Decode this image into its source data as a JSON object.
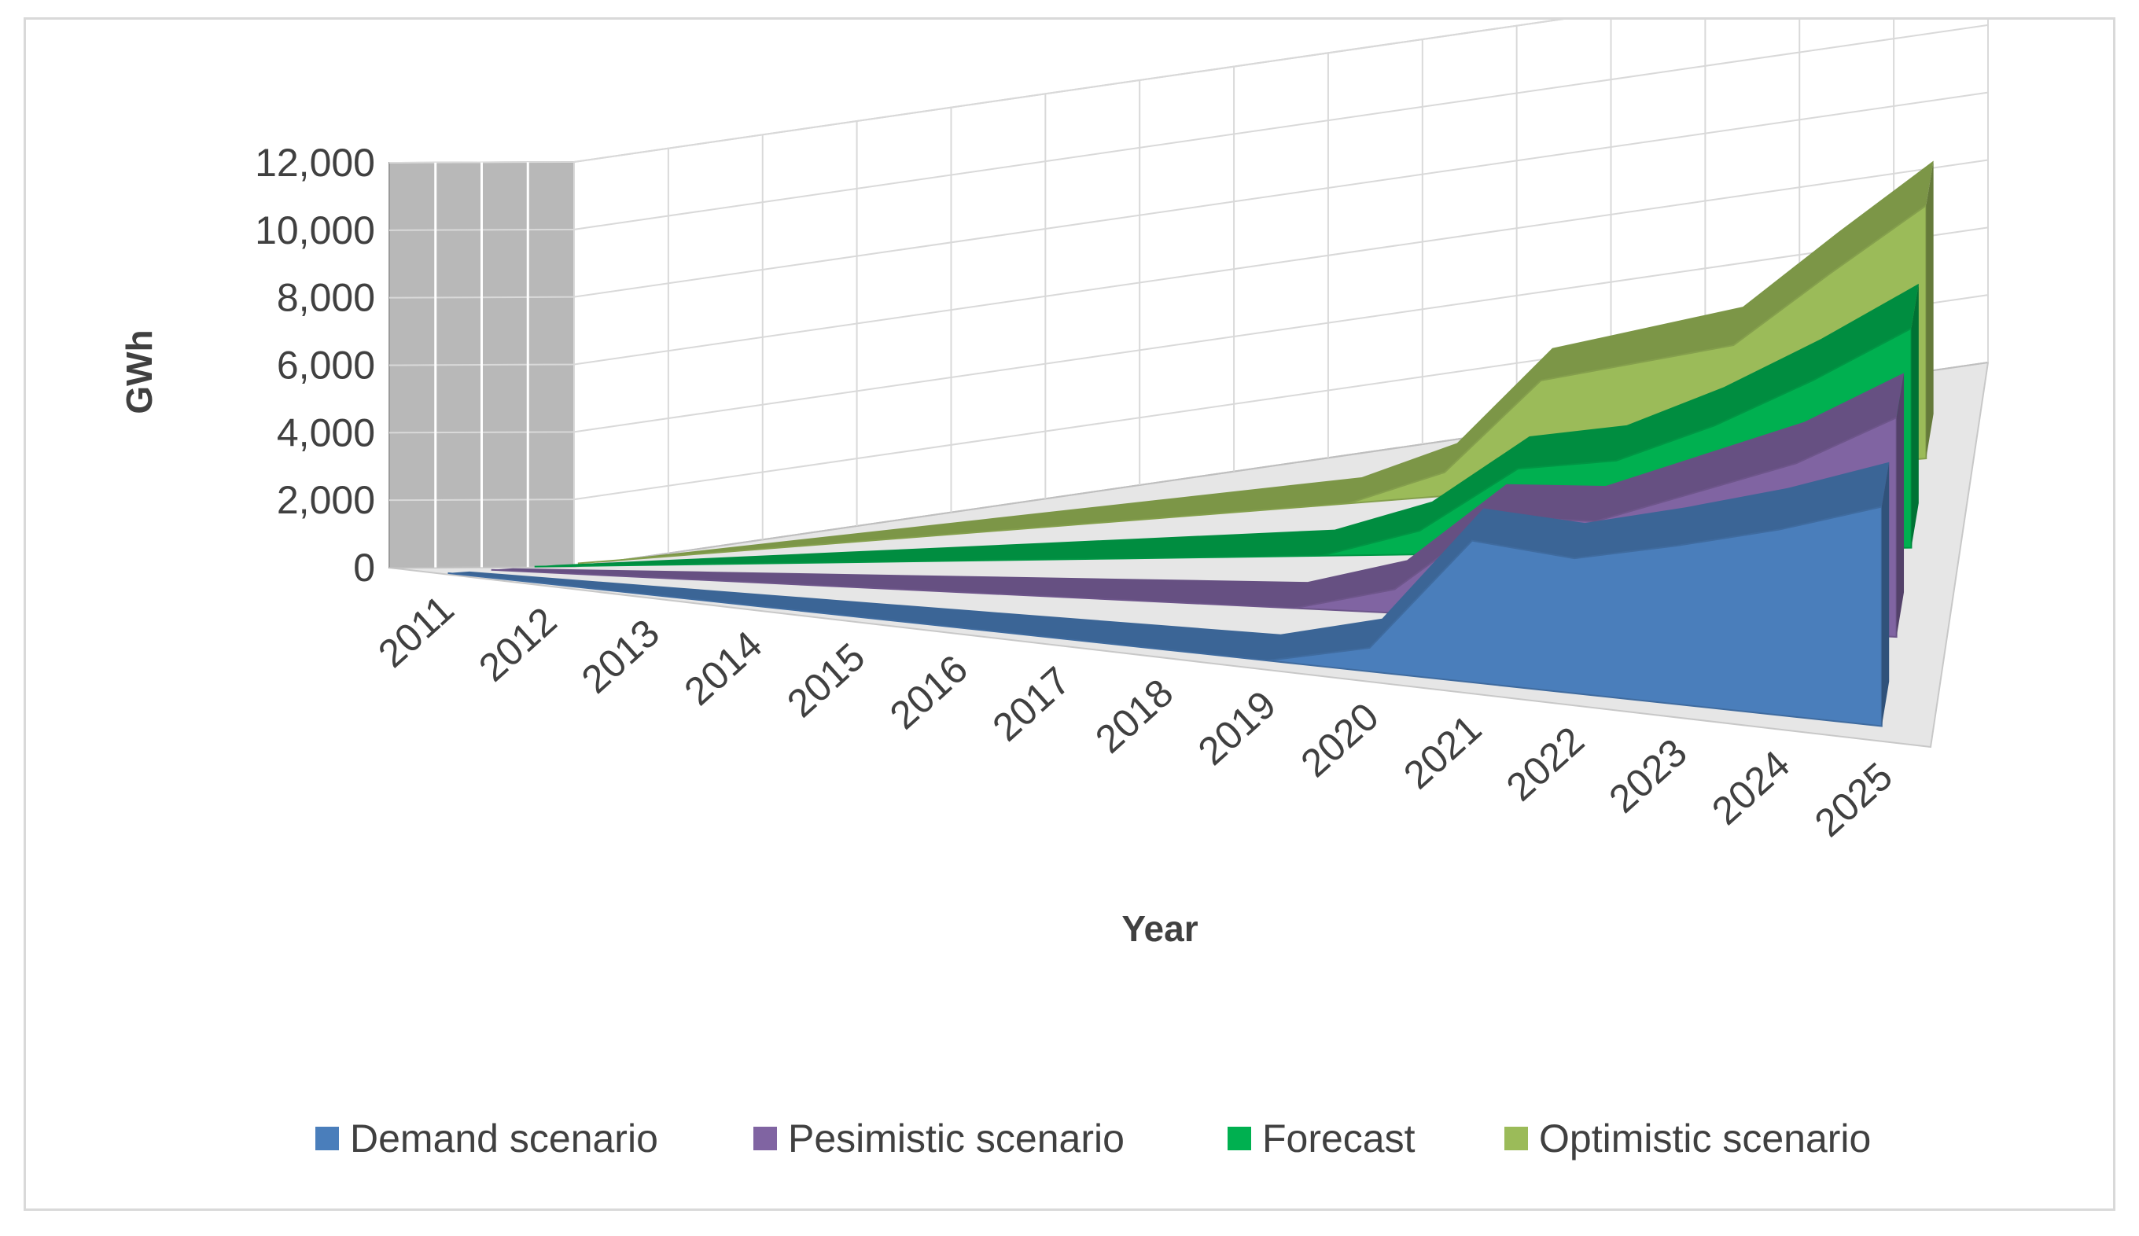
{
  "chart_data": {
    "type": "area",
    "style": "3d",
    "title": "",
    "xlabel": "Year",
    "ylabel": "GWh",
    "categories": [
      "2011",
      "2012",
      "2013",
      "2014",
      "2015",
      "2016",
      "2017",
      "2018",
      "2019",
      "2020",
      "2021",
      "2022",
      "2023",
      "2024",
      "2025"
    ],
    "ylim": [
      0,
      12000
    ],
    "yticks": [
      0,
      2000,
      4000,
      6000,
      8000,
      10000,
      12000
    ],
    "ytick_labels": [
      "0",
      "2,000",
      "4,000",
      "6,000",
      "8,000",
      "10,000",
      "12,000"
    ],
    "grid": true,
    "legend_position": "bottom",
    "series": [
      {
        "name": "Demand scenario",
        "color": "#4a7ebb",
        "values": [
          0,
          0,
          0,
          0,
          0,
          0,
          0,
          0,
          0,
          700,
          4200,
          4000,
          4700,
          5500,
          6500
        ]
      },
      {
        "name": "Pesimistic scenario",
        "color": "#8064a2",
        "values": [
          0,
          0,
          0,
          0,
          0,
          0,
          0,
          0,
          0,
          700,
          3000,
          3000,
          4000,
          5000,
          6500
        ]
      },
      {
        "name": "Forecast",
        "color": "#00b050",
        "values": [
          0,
          0,
          0,
          0,
          0,
          0,
          0,
          0,
          0,
          700,
          2500,
          2700,
          3700,
          5000,
          6500
        ]
      },
      {
        "name": "Optimistic scenario",
        "color": "#9bbb59",
        "values": [
          0,
          0,
          0,
          0,
          0,
          0,
          0,
          0,
          0,
          700,
          3200,
          3500,
          3800,
          5700,
          7500
        ]
      }
    ]
  }
}
